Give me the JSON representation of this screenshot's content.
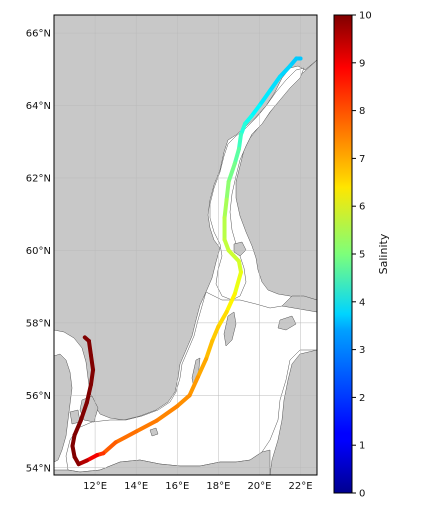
{
  "map": {
    "lat_labels": [
      "66°N",
      "64°N",
      "62°N",
      "60°N",
      "58°N",
      "56°N",
      "54°N"
    ],
    "lon_labels": [
      "12°E",
      "14°E",
      "16°E",
      "18°E",
      "20°E",
      "22°E"
    ],
    "lat_range": [
      53.8,
      66.5
    ],
    "lon_range": [
      10.0,
      22.8
    ],
    "land_color": "#c8c8c8",
    "sea_color": "#ffffff",
    "graticule": true
  },
  "colorbar": {
    "label": "Salinity",
    "min": 0,
    "max": 10,
    "ticks": [
      "0",
      "1",
      "2",
      "3",
      "4",
      "5",
      "6",
      "7",
      "8",
      "9",
      "10"
    ],
    "colormap": "jet"
  },
  "track": {
    "lons": [
      22.0,
      21.8,
      21.5,
      21.0,
      20.5,
      20.0,
      19.6,
      19.3,
      19.1,
      19.0,
      18.8,
      18.5,
      18.4,
      18.3,
      18.3,
      18.5,
      19.0,
      19.1,
      18.8,
      18.4,
      18.0,
      17.7,
      17.4,
      17.0,
      16.6,
      16.0,
      15.0,
      14.0,
      13.0,
      12.4,
      12.1,
      11.6,
      11.2,
      11.0,
      10.9,
      11.0,
      11.3,
      11.6,
      11.8,
      11.9,
      11.8,
      11.7,
      11.5
    ],
    "lats": [
      65.3,
      65.3,
      65.1,
      64.8,
      64.4,
      64.0,
      63.7,
      63.5,
      63.2,
      62.8,
      62.4,
      61.9,
      61.4,
      60.9,
      60.3,
      60.0,
      59.7,
      59.4,
      58.8,
      58.3,
      57.9,
      57.5,
      57.0,
      56.5,
      56.0,
      55.7,
      55.3,
      55.0,
      54.7,
      54.4,
      54.35,
      54.2,
      54.1,
      54.3,
      54.6,
      54.9,
      55.3,
      55.8,
      56.3,
      56.7,
      57.1,
      57.5,
      57.6
    ],
    "salinity": [
      3.2,
      3.2,
      3.3,
      3.4,
      3.5,
      3.6,
      3.8,
      4.0,
      4.2,
      4.5,
      4.8,
      5.0,
      5.3,
      5.5,
      5.6,
      5.7,
      5.8,
      5.9,
      6.2,
      6.5,
      6.7,
      6.8,
      7.0,
      7.2,
      7.3,
      7.4,
      7.5,
      7.6,
      7.7,
      8.0,
      8.5,
      9.2,
      9.8,
      10.0,
      10.0,
      10.0,
      10.0,
      10.0,
      10.0,
      10.0,
      10.0,
      10.0,
      10.0
    ]
  }
}
